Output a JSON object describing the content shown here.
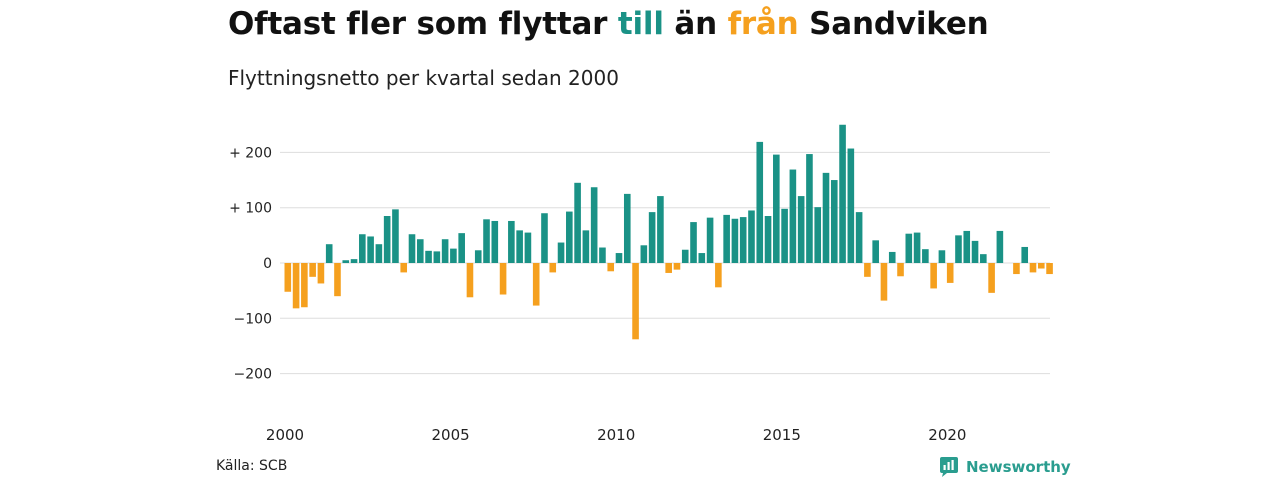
{
  "title": {
    "part1": "Oftast fler som flyttar ",
    "part2": "till",
    "part3": " än ",
    "part4": "från",
    "part5": " Sandviken"
  },
  "subtitle": "Flyttningsnetto per kvartal sedan 2000",
  "source": "Källa: SCB",
  "brand": "Newsworthy",
  "colors": {
    "positive": "#1a9286",
    "negative": "#f5a01e",
    "grid": "#dddddd",
    "brand": "#2a9d8f"
  },
  "chart_data": {
    "type": "bar",
    "ylim": [
      -230,
      250
    ],
    "y_ticks": [
      {
        "value": 200,
        "label": "+ 200"
      },
      {
        "value": 100,
        "label": "+ 100"
      },
      {
        "value": 0,
        "label": "0"
      },
      {
        "value": -100,
        "label": "−100"
      },
      {
        "value": -200,
        "label": "−200"
      }
    ],
    "x_ticks": [
      "2000",
      "2005",
      "2010",
      "2015",
      "2020"
    ],
    "start": "2000 Q1",
    "values": [
      -52,
      -82,
      -80,
      -25,
      -37,
      34,
      -60,
      5,
      7,
      52,
      48,
      34,
      85,
      97,
      -17,
      52,
      43,
      22,
      21,
      43,
      26,
      54,
      -62,
      23,
      79,
      76,
      -57,
      76,
      59,
      55,
      -77,
      90,
      -17,
      37,
      93,
      145,
      59,
      137,
      28,
      -15,
      18,
      125,
      -138,
      32,
      92,
      121,
      -18,
      -12,
      24,
      74,
      18,
      82,
      -44,
      87,
      80,
      83,
      95,
      219,
      85,
      196,
      98,
      169,
      121,
      197,
      101,
      163,
      150,
      250,
      207,
      92,
      -25,
      41,
      -68,
      20,
      -24,
      53,
      55,
      25,
      -46,
      23,
      -36,
      50,
      58,
      40,
      16,
      -54,
      58,
      0,
      -20,
      29,
      -17,
      -10,
      -20
    ]
  }
}
